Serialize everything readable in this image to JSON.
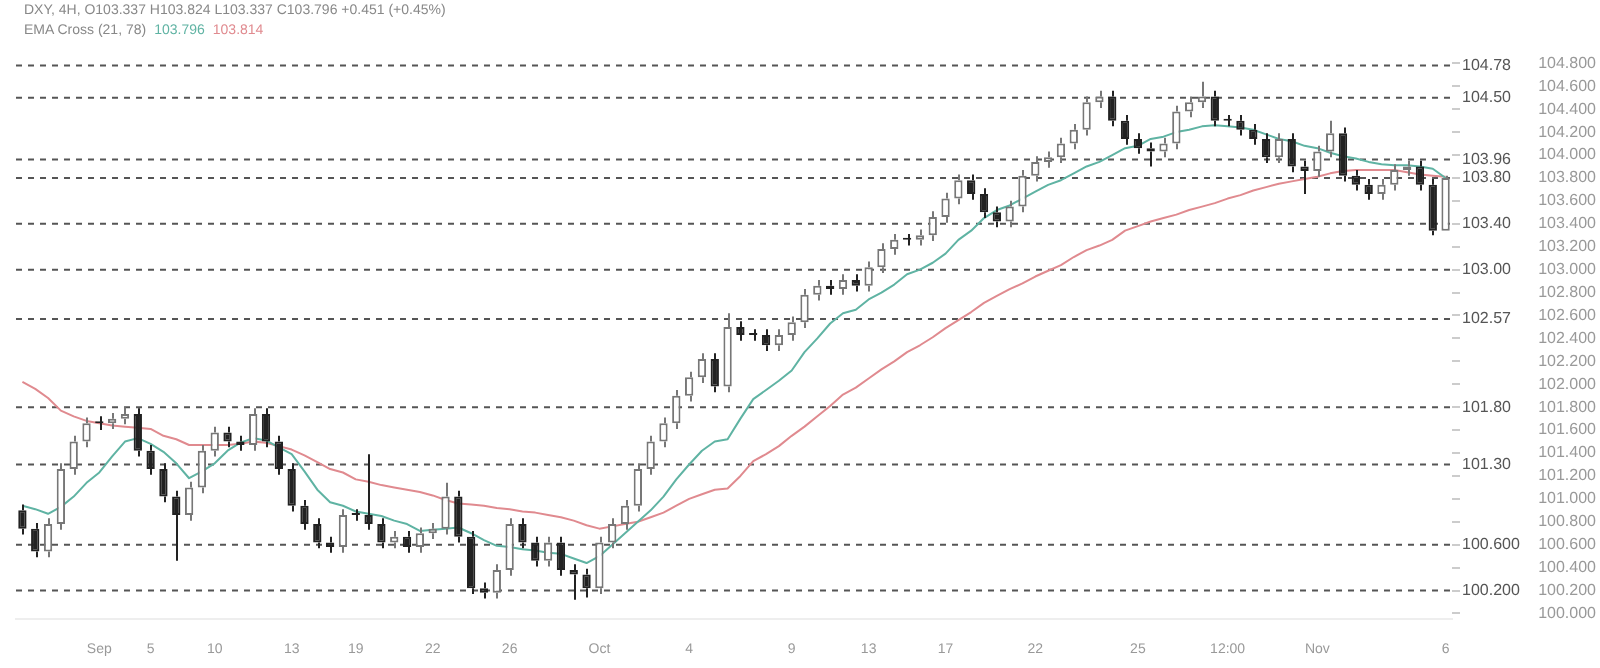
{
  "chart_data": {
    "type": "candlestick",
    "legend": "top",
    "colors": [
      "#222222",
      "#222222",
      "#777777",
      "#777777",
      "#777777",
      "#777777",
      "#222222",
      "#777777",
      "#777777",
      "#222222",
      "#222222",
      "#222222",
      "#222222",
      "#777777",
      "#777777",
      "#777777",
      "#222222",
      "#222222",
      "#777777",
      "#222222",
      "#222222",
      "#222222",
      "#222222",
      "#222222",
      "#222222",
      "#777777",
      "#222222",
      "#222222",
      "#222222",
      "#777777",
      "#222222",
      "#777777",
      "#777777",
      "#777777",
      "#222222",
      "#222222",
      "#222222",
      "#777777",
      "#777777",
      "#222222",
      "#222222",
      "#777777",
      "#222222",
      "#222222",
      "#222222",
      "#777777",
      "#777777",
      "#777777",
      "#777777",
      "#777777",
      "#777777",
      "#777777",
      "#777777",
      "#777777",
      "#222222",
      "#777777",
      "#222222",
      "#222222",
      "#222222",
      "#777777",
      "#777777",
      "#777777",
      "#777777",
      "#222222",
      "#777777",
      "#222222",
      "#777777",
      "#777777",
      "#777777",
      "#222222",
      "#777777",
      "#777777",
      "#777777",
      "#777777",
      "#222222",
      "#222222",
      "#222222",
      "#777777",
      "#777777",
      "#777777",
      "#777777",
      "#777777",
      "#777777",
      "#777777",
      "#777777",
      "#222222",
      "#222222",
      "#222222",
      "#222222",
      "#777777",
      "#777777",
      "#777777",
      "#777777",
      "#222222",
      "#222222",
      "#222222",
      "#222222",
      "#222222",
      "#777777",
      "#222222",
      "#222222",
      "#777777",
      "#777777",
      "#222222",
      "#222222",
      "#222222",
      "#777777",
      "#777777",
      "#777777",
      "#222222",
      "#222222",
      "#777777"
    ],
    "annotations": [
      "DXY, 4H, O103.337 H103.824 L103.337 C103.796 +0.451 (+0.45%)",
      "EMA Cross (21, 78)"
    ],
    "categories": [
      null,
      null,
      null,
      null,
      null,
      null,
      "Sep",
      null,
      null,
      null,
      "5",
      null,
      null,
      null,
      null,
      "10",
      null,
      null,
      null,
      null,
      null,
      "13",
      null,
      null,
      null,
      null,
      "19",
      null,
      null,
      null,
      null,
      null,
      "22",
      null,
      null,
      null,
      null,
      null,
      "26",
      null,
      null,
      null,
      null,
      null,
      null,
      "Oct",
      null,
      null,
      null,
      null,
      null,
      null,
      "4",
      null,
      null,
      null,
      null,
      null,
      null,
      null,
      "9",
      null,
      null,
      null,
      null,
      null,
      "13",
      null,
      null,
      null,
      null,
      null,
      "17",
      null,
      null,
      null,
      null,
      null,
      null,
      "22",
      null,
      null,
      null,
      null,
      null,
      null,
      null,
      "25",
      null,
      null,
      null,
      null,
      null,
      null,
      "12:00",
      null,
      null,
      null,
      null,
      null,
      null,
      "Nov",
      null,
      null,
      null,
      null,
      null,
      null,
      null,
      null,
      null,
      "6"
    ],
    "ohlc": [
      [
        100.9,
        100.95,
        100.69,
        100.74
      ],
      [
        100.74,
        100.79,
        100.49,
        100.54
      ],
      [
        100.54,
        100.83,
        100.49,
        100.78
      ],
      [
        100.78,
        101.31,
        100.73,
        101.26
      ],
      [
        101.26,
        101.55,
        101.21,
        101.5
      ],
      [
        101.5,
        101.71,
        101.45,
        101.66
      ],
      [
        101.66,
        101.72,
        101.6,
        101.66
      ],
      [
        101.66,
        101.75,
        101.61,
        101.7
      ],
      [
        101.7,
        101.8,
        101.65,
        101.74
      ],
      [
        101.74,
        101.79,
        101.37,
        101.42
      ],
      [
        101.42,
        101.47,
        101.21,
        101.26
      ],
      [
        101.26,
        101.31,
        100.97,
        101.02
      ],
      [
        101.02,
        101.07,
        100.46,
        100.86
      ],
      [
        100.86,
        101.15,
        100.81,
        101.1
      ],
      [
        101.1,
        101.47,
        101.05,
        101.42
      ],
      [
        101.42,
        101.63,
        101.37,
        101.58
      ],
      [
        101.58,
        101.63,
        101.45,
        101.5
      ],
      [
        101.5,
        101.55,
        101.42,
        101.47
      ],
      [
        101.47,
        101.79,
        101.42,
        101.74
      ],
      [
        101.74,
        101.79,
        101.45,
        101.5
      ],
      [
        101.5,
        101.55,
        101.21,
        101.26
      ],
      [
        101.26,
        101.31,
        100.89,
        100.94
      ],
      [
        100.94,
        100.99,
        100.73,
        100.78
      ],
      [
        100.78,
        100.83,
        100.57,
        100.62
      ],
      [
        100.62,
        100.67,
        100.53,
        100.58
      ],
      [
        100.58,
        100.91,
        100.53,
        100.86
      ],
      [
        100.86,
        100.91,
        100.81,
        100.86
      ],
      [
        100.86,
        101.39,
        100.73,
        100.78
      ],
      [
        100.78,
        100.83,
        100.57,
        100.62
      ],
      [
        100.62,
        100.72,
        100.57,
        100.67
      ],
      [
        100.67,
        100.72,
        100.53,
        100.58
      ],
      [
        100.58,
        100.75,
        100.53,
        100.7
      ],
      [
        100.7,
        100.79,
        100.65,
        100.74
      ],
      [
        100.74,
        101.14,
        100.69,
        101.02
      ],
      [
        101.02,
        101.07,
        100.62,
        100.67
      ],
      [
        100.67,
        100.72,
        100.17,
        100.22
      ],
      [
        100.22,
        100.27,
        100.13,
        100.18
      ],
      [
        100.18,
        100.43,
        100.13,
        100.38
      ],
      [
        100.38,
        100.83,
        100.33,
        100.78
      ],
      [
        100.78,
        100.83,
        100.57,
        100.62
      ],
      [
        100.62,
        100.67,
        100.41,
        100.46
      ],
      [
        100.46,
        100.67,
        100.41,
        100.62
      ],
      [
        100.62,
        100.67,
        100.33,
        100.38
      ],
      [
        100.38,
        100.43,
        100.12,
        100.34
      ],
      [
        100.34,
        100.39,
        100.14,
        100.22
      ],
      [
        100.22,
        100.67,
        100.17,
        100.62
      ],
      [
        100.62,
        100.83,
        100.57,
        100.78
      ],
      [
        100.78,
        100.99,
        100.73,
        100.94
      ],
      [
        100.94,
        101.31,
        100.89,
        101.26
      ],
      [
        101.26,
        101.55,
        101.21,
        101.5
      ],
      [
        101.5,
        101.71,
        101.45,
        101.66
      ],
      [
        101.66,
        101.95,
        101.61,
        101.9
      ],
      [
        101.9,
        102.11,
        101.85,
        102.06
      ],
      [
        102.06,
        102.27,
        102.01,
        102.22
      ],
      [
        102.22,
        102.27,
        101.93,
        101.98
      ],
      [
        101.98,
        102.62,
        101.93,
        102.5
      ],
      [
        102.5,
        102.55,
        102.38,
        102.43
      ],
      [
        102.43,
        102.48,
        102.38,
        102.43
      ],
      [
        102.43,
        102.48,
        102.29,
        102.34
      ],
      [
        102.34,
        102.48,
        102.29,
        102.43
      ],
      [
        102.43,
        102.59,
        102.38,
        102.54
      ],
      [
        102.54,
        102.83,
        102.49,
        102.78
      ],
      [
        102.78,
        102.91,
        102.73,
        102.86
      ],
      [
        102.86,
        102.91,
        102.78,
        102.83
      ],
      [
        102.83,
        102.96,
        102.78,
        102.91
      ],
      [
        102.91,
        102.96,
        102.81,
        102.86
      ],
      [
        102.86,
        103.07,
        102.81,
        103.02
      ],
      [
        103.02,
        103.23,
        102.97,
        103.18
      ],
      [
        103.18,
        103.31,
        103.13,
        103.26
      ],
      [
        103.26,
        103.31,
        103.21,
        103.26
      ],
      [
        103.26,
        103.35,
        103.21,
        103.3
      ],
      [
        103.3,
        103.51,
        103.25,
        103.46
      ],
      [
        103.46,
        103.67,
        103.41,
        103.62
      ],
      [
        103.62,
        103.83,
        103.57,
        103.78
      ],
      [
        103.78,
        103.83,
        103.61,
        103.66
      ],
      [
        103.66,
        103.71,
        103.45,
        103.5
      ],
      [
        103.5,
        103.55,
        103.37,
        103.42
      ],
      [
        103.42,
        103.6,
        103.37,
        103.55
      ],
      [
        103.55,
        103.87,
        103.5,
        103.82
      ],
      [
        103.82,
        103.99,
        103.77,
        103.94
      ],
      [
        103.94,
        104.03,
        103.89,
        103.98
      ],
      [
        103.98,
        104.15,
        103.93,
        104.1
      ],
      [
        104.1,
        104.27,
        104.05,
        104.22
      ],
      [
        104.22,
        104.51,
        104.17,
        104.46
      ],
      [
        104.46,
        104.56,
        104.41,
        104.51
      ],
      [
        104.51,
        104.56,
        104.25,
        104.3
      ],
      [
        104.3,
        104.35,
        104.09,
        104.14
      ],
      [
        104.14,
        104.19,
        104.01,
        104.06
      ],
      [
        104.06,
        104.11,
        103.9,
        104.03
      ],
      [
        104.03,
        104.15,
        103.98,
        104.1
      ],
      [
        104.1,
        104.43,
        104.05,
        104.38
      ],
      [
        104.38,
        104.51,
        104.33,
        104.46
      ],
      [
        104.46,
        104.64,
        104.41,
        104.51
      ],
      [
        104.51,
        104.56,
        104.25,
        104.3
      ],
      [
        104.3,
        104.35,
        104.25,
        104.3
      ],
      [
        104.3,
        104.35,
        104.17,
        104.22
      ],
      [
        104.22,
        104.27,
        104.09,
        104.14
      ],
      [
        104.14,
        104.19,
        103.93,
        103.98
      ],
      [
        103.98,
        104.19,
        103.93,
        104.14
      ],
      [
        104.14,
        104.19,
        103.85,
        103.9
      ],
      [
        103.9,
        103.95,
        103.66,
        103.86
      ],
      [
        103.86,
        104.08,
        103.81,
        104.03
      ],
      [
        104.03,
        104.3,
        103.98,
        104.19
      ],
      [
        104.19,
        104.24,
        103.77,
        103.82
      ],
      [
        103.82,
        103.87,
        103.69,
        103.74
      ],
      [
        103.74,
        103.79,
        103.61,
        103.66
      ],
      [
        103.66,
        103.79,
        103.61,
        103.74
      ],
      [
        103.74,
        103.92,
        103.69,
        103.87
      ],
      [
        103.87,
        103.95,
        103.82,
        103.9
      ],
      [
        103.9,
        103.95,
        103.69,
        103.74
      ],
      [
        103.74,
        103.79,
        103.3,
        103.34
      ],
      [
        103.34,
        103.82,
        103.34,
        103.8
      ]
    ],
    "series": [
      {
        "name": "103.796",
        "type": "line",
        "color": "#5fb3a3",
        "values": [
          100.94,
          100.91,
          100.87,
          100.93,
          101.02,
          101.14,
          101.23,
          101.37,
          101.5,
          101.53,
          101.48,
          101.41,
          101.31,
          101.18,
          101.24,
          101.31,
          101.42,
          101.49,
          101.53,
          101.51,
          101.45,
          101.39,
          101.24,
          101.08,
          100.97,
          100.94,
          100.89,
          100.87,
          100.85,
          100.81,
          100.78,
          100.72,
          100.73,
          100.74,
          100.75,
          100.7,
          100.64,
          100.59,
          100.58,
          100.56,
          100.55,
          100.53,
          100.52,
          100.48,
          100.44,
          100.5,
          100.6,
          100.7,
          100.8,
          100.9,
          101.02,
          101.17,
          101.3,
          101.42,
          101.5,
          101.52,
          101.7,
          101.87,
          101.95,
          102.03,
          102.12,
          102.28,
          102.4,
          102.53,
          102.62,
          102.65,
          102.74,
          102.8,
          102.87,
          102.96,
          103.0,
          103.06,
          103.14,
          103.26,
          103.34,
          103.45,
          103.52,
          103.56,
          103.62,
          103.68,
          103.74,
          103.78,
          103.84,
          103.9,
          103.94,
          104.0,
          104.06,
          104.08,
          104.14,
          104.16,
          104.2,
          104.22,
          104.25,
          104.26,
          104.25,
          104.24,
          104.22,
          104.18,
          104.14,
          104.12,
          104.08,
          104.06,
          104.02,
          103.99,
          103.97,
          103.94,
          103.92,
          103.91,
          103.91,
          103.9,
          103.88,
          103.8
        ]
      },
      {
        "name": "103.814",
        "type": "line",
        "color": "#e08a8f",
        "values": [
          102.02,
          101.96,
          101.88,
          101.77,
          101.72,
          101.68,
          101.66,
          101.64,
          101.63,
          101.62,
          101.61,
          101.55,
          101.52,
          101.47,
          101.47,
          101.47,
          101.47,
          101.48,
          101.5,
          101.49,
          101.46,
          101.43,
          101.38,
          101.32,
          101.26,
          101.23,
          101.17,
          101.15,
          101.12,
          101.1,
          101.08,
          101.06,
          101.03,
          100.99,
          100.96,
          100.95,
          100.94,
          100.92,
          100.91,
          100.89,
          100.88,
          100.86,
          100.84,
          100.81,
          100.77,
          100.74,
          100.76,
          100.78,
          100.8,
          100.84,
          100.88,
          100.94,
          101.0,
          101.04,
          101.08,
          101.09,
          101.2,
          101.33,
          101.39,
          101.46,
          101.55,
          101.63,
          101.72,
          101.81,
          101.91,
          101.97,
          102.05,
          102.13,
          102.2,
          102.28,
          102.34,
          102.41,
          102.49,
          102.56,
          102.63,
          102.71,
          102.77,
          102.83,
          102.88,
          102.94,
          102.99,
          103.04,
          103.11,
          103.17,
          103.21,
          103.26,
          103.34,
          103.38,
          103.42,
          103.45,
          103.48,
          103.52,
          103.55,
          103.58,
          103.62,
          103.65,
          103.69,
          103.72,
          103.75,
          103.77,
          103.79,
          103.81,
          103.84,
          103.86,
          103.87,
          103.87,
          103.87,
          103.87,
          103.85,
          103.83,
          103.82,
          103.81
        ]
      }
    ],
    "ref_lines": [
      {
        "axis": "y",
        "value": 104.78,
        "label": "104.78",
        "color": "#555555",
        "line_style": "dashed"
      },
      {
        "axis": "y",
        "value": 104.5,
        "label": "104.50",
        "color": "#555555",
        "line_style": "dashed"
      },
      {
        "axis": "y",
        "value": 103.96,
        "label": "103.96",
        "color": "#555555",
        "line_style": "dashed"
      },
      {
        "axis": "y",
        "value": 103.8,
        "label": "103.80",
        "color": "#555555",
        "line_style": "dashed"
      },
      {
        "axis": "y",
        "value": 103.4,
        "label": "103.40",
        "color": "#555555",
        "line_style": "dashed"
      },
      {
        "axis": "y",
        "value": 103.0,
        "label": "103.00",
        "color": "#555555",
        "line_style": "dashed"
      },
      {
        "axis": "y",
        "value": 102.57,
        "label": "102.57",
        "color": "#555555",
        "line_style": "dashed"
      },
      {
        "axis": "y",
        "value": 101.8,
        "label": "101.80",
        "color": "#555555",
        "line_style": "dashed"
      },
      {
        "axis": "y",
        "value": 101.3,
        "label": "101.30",
        "color": "#555555",
        "line_style": "dashed"
      },
      {
        "axis": "y",
        "value": 100.6,
        "label": "100.600",
        "color": "#555555",
        "line_style": "dashed"
      },
      {
        "axis": "y",
        "value": 100.2,
        "label": "100.200",
        "color": "#555555",
        "line_style": "dashed"
      }
    ],
    "ylim": [
      99.95,
      104.85
    ],
    "yticks": [
      {
        "value": 100.0,
        "label": "100.000"
      },
      {
        "value": 100.2,
        "label": "100.200"
      },
      {
        "value": 100.4,
        "label": "100.400"
      },
      {
        "value": 100.6,
        "label": "100.600"
      },
      {
        "value": 100.8,
        "label": "100.800"
      },
      {
        "value": 101.0,
        "label": "101.000"
      },
      {
        "value": 101.2,
        "label": "101.200"
      },
      {
        "value": 101.4,
        "label": "101.400"
      },
      {
        "value": 101.6,
        "label": "101.600"
      },
      {
        "value": 101.8,
        "label": "101.800"
      },
      {
        "value": 102.0,
        "label": "102.000"
      },
      {
        "value": 102.2,
        "label": "102.200"
      },
      {
        "value": 102.4,
        "label": "102.400"
      },
      {
        "value": 102.6,
        "label": "102.600"
      },
      {
        "value": 102.8,
        "label": "102.800"
      },
      {
        "value": 103.0,
        "label": "103.000"
      },
      {
        "value": 103.2,
        "label": "103.200"
      },
      {
        "value": 103.4,
        "label": "103.400"
      },
      {
        "value": 103.6,
        "label": "103.600"
      },
      {
        "value": 103.8,
        "label": "103.800"
      },
      {
        "value": 104.0,
        "label": "104.000"
      },
      {
        "value": 104.2,
        "label": "104.200"
      },
      {
        "value": 104.4,
        "label": "104.400"
      },
      {
        "value": 104.6,
        "label": "104.600"
      },
      {
        "value": 104.8,
        "label": "104.800"
      }
    ]
  }
}
